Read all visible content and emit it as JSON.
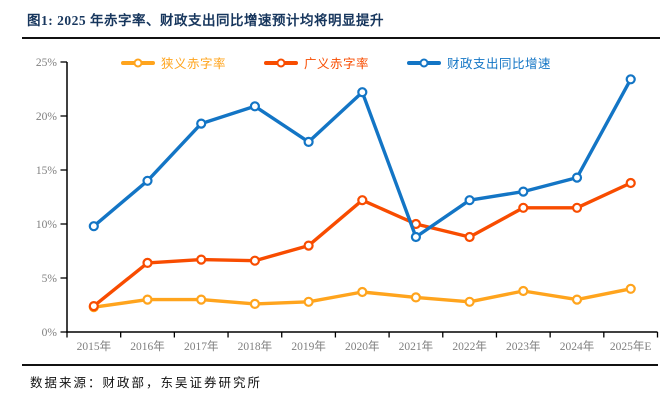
{
  "figure": {
    "title": "图1:  2025 年赤字率、财政支出同比增速预计均将明显提升",
    "source": "数据来源：财政部，东吴证券研究所"
  },
  "chart_data": {
    "type": "line",
    "title": "2025 年赤字率、财政支出同比增速预计均将明显提升",
    "categories": [
      "2015年",
      "2016年",
      "2017年",
      "2018年",
      "2019年",
      "2020年",
      "2021年",
      "2022年",
      "2023年",
      "2024年",
      "2025年E"
    ],
    "series": [
      {
        "name": "狭义赤字率",
        "color": "#FFA41D",
        "values": [
          2.3,
          3.0,
          3.0,
          2.6,
          2.8,
          3.7,
          3.2,
          2.8,
          3.8,
          3.0,
          4.0
        ]
      },
      {
        "name": "广义赤字率",
        "color": "#F84C00",
        "values": [
          2.4,
          6.4,
          6.7,
          6.6,
          8.0,
          12.2,
          10.0,
          8.8,
          11.5,
          11.5,
          13.8
        ]
      },
      {
        "name": "财政支出同比增速",
        "color": "#1375C5",
        "values": [
          9.8,
          14.0,
          19.3,
          20.9,
          17.6,
          22.2,
          8.8,
          12.2,
          13.0,
          14.3,
          23.4
        ]
      }
    ],
    "ylim": [
      0,
      25
    ],
    "ytick_step": 5,
    "ytick_labels": [
      "0%",
      "5%",
      "10%",
      "15%",
      "20%",
      "25%"
    ],
    "xlabel": "",
    "ylabel": "",
    "grid": false,
    "legend_position": "top",
    "colors": {
      "axis": "#000000",
      "tick_label": "#7F7F7F",
      "title": "#17365D",
      "marker_fill": "#FFFFFF"
    }
  }
}
